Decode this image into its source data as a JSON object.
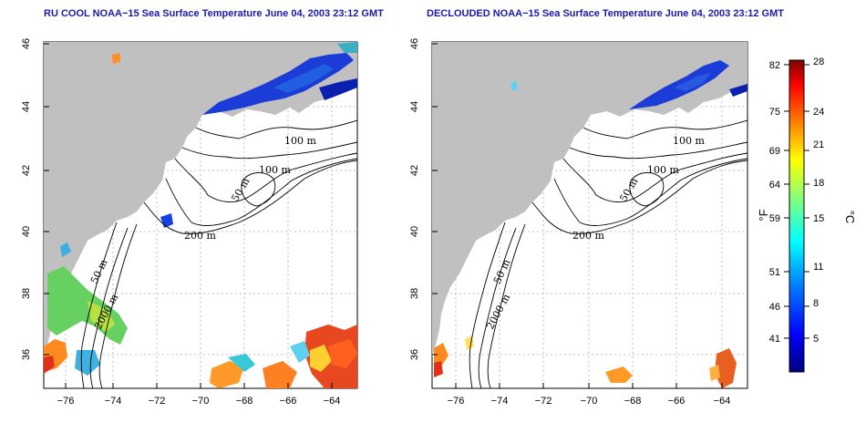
{
  "panels": [
    {
      "title": "RU COOL NOAA−15 Sea Surface Temperature June 04, 2003 23:12 GMT",
      "x_ticks": [
        "−76",
        "−74",
        "−72",
        "−70",
        "−68",
        "−66",
        "−64"
      ],
      "y_ticks": [
        "36",
        "38",
        "40",
        "42",
        "44",
        "46"
      ],
      "contour_labels": [
        "100 m",
        "100 m",
        "50 m",
        "200 m",
        "50 m",
        "2000 m"
      ]
    },
    {
      "title": "DECLOUDED NOAA−15 Sea Surface Temperature June 04, 2003 23:12 GMT",
      "x_ticks": [
        "−76",
        "−74",
        "−72",
        "−70",
        "−68",
        "−66",
        "−64"
      ],
      "y_ticks": [
        "36",
        "38",
        "40",
        "42",
        "44",
        "46"
      ],
      "contour_labels": [
        "100 m",
        "100 m",
        "50 m",
        "200 m",
        "50 m",
        "2000 m"
      ]
    }
  ],
  "colorbar": {
    "fahrenheit_ticks": [
      "82",
      "75",
      "69",
      "64",
      "59",
      "51",
      "46",
      "41"
    ],
    "celsius_ticks": [
      "28",
      "24",
      "21",
      "18",
      "15",
      "11",
      "8",
      "5"
    ],
    "fahrenheit_unit": "°F",
    "celsius_unit": "°C",
    "range_c": [
      2,
      28
    ],
    "colors": [
      "#00007f",
      "#0000ff",
      "#0080ff",
      "#00ffff",
      "#80ff80",
      "#ffff00",
      "#ff8000",
      "#ff0000",
      "#7f0000"
    ]
  },
  "colors": {
    "land": "#c0c0c0",
    "title": "#1a1aa8",
    "grid": "#b0b0b0"
  }
}
